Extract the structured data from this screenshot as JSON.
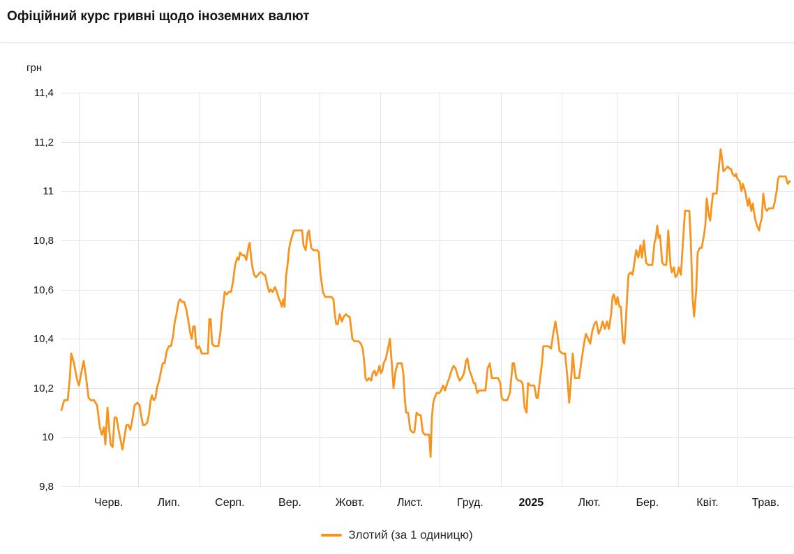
{
  "header": {
    "title": "Офіційний курс гривні щодо іноземних валют"
  },
  "legend": {
    "label": "Злотий (за 1 одиницю)",
    "swatch_color": "#F7941E"
  },
  "colors": {
    "line": "#F7941E",
    "grid": "#e4e4e4",
    "text": "#141414"
  },
  "chart_data": {
    "type": "line",
    "title": "Офіційний курс гривні щодо іноземних валют",
    "ylabel": "грн",
    "xlabel": "",
    "ylim": [
      9.8,
      11.4
    ],
    "grid": true,
    "legend_position": "bottom-center",
    "series_name": "Злотий (за 1 одиницю)",
    "line_color": "#F7941E",
    "y_ticks": [
      {
        "label": "11,4",
        "value": 11.4
      },
      {
        "label": "11,2",
        "value": 11.2
      },
      {
        "label": "11",
        "value": 11.0
      },
      {
        "label": "10,8",
        "value": 10.8
      },
      {
        "label": "10,6",
        "value": 10.6
      },
      {
        "label": "10,4",
        "value": 10.4
      },
      {
        "label": "10,2",
        "value": 10.2
      },
      {
        "label": "10",
        "value": 10.0
      },
      {
        "label": "9,8",
        "value": 9.8
      }
    ],
    "x_ticks": [
      {
        "label": "Черв.",
        "bold": false
      },
      {
        "label": "Лип.",
        "bold": false
      },
      {
        "label": "Серп.",
        "bold": false
      },
      {
        "label": "Вер.",
        "bold": false
      },
      {
        "label": "Жовт.",
        "bold": false
      },
      {
        "label": "Лист.",
        "bold": false
      },
      {
        "label": "Груд.",
        "bold": false
      },
      {
        "label": "2025",
        "bold": true
      },
      {
        "label": "Лют.",
        "bold": false
      },
      {
        "label": "Бер.",
        "bold": false
      },
      {
        "label": "Квіт.",
        "bold": false
      },
      {
        "label": "Трав.",
        "bold": false
      }
    ],
    "month_start_days": [
      9,
      39,
      70,
      101,
      131,
      162,
      192,
      223,
      254,
      282,
      313,
      343
    ],
    "x_axis_end_day": 372,
    "points": [
      [
        0,
        10.11
      ],
      [
        1.4,
        10.15
      ],
      [
        3.2,
        10.15
      ],
      [
        4.3,
        10.24
      ],
      [
        5,
        10.34
      ],
      [
        6.4,
        10.3
      ],
      [
        7.8,
        10.24
      ],
      [
        8.9,
        10.21
      ],
      [
        10.3,
        10.27
      ],
      [
        11.3,
        10.31
      ],
      [
        12.4,
        10.25
      ],
      [
        13.8,
        10.16
      ],
      [
        14.9,
        10.15
      ],
      [
        16.6,
        10.15
      ],
      [
        18.1,
        10.13
      ],
      [
        19.5,
        10.04
      ],
      [
        20.5,
        10.01
      ],
      [
        21.6,
        10.04
      ],
      [
        22.3,
        9.97
      ],
      [
        23.4,
        10.12
      ],
      [
        24.2,
        10.04
      ],
      [
        25,
        9.97
      ],
      [
        26,
        9.96
      ],
      [
        27,
        10.08
      ],
      [
        28,
        10.08
      ],
      [
        29,
        10.03
      ],
      [
        30,
        9.99
      ],
      [
        31,
        9.95
      ],
      [
        32,
        10.0
      ],
      [
        33,
        10.05
      ],
      [
        34,
        10.05
      ],
      [
        35,
        10.03
      ],
      [
        36,
        10.07
      ],
      [
        37.2,
        10.13
      ],
      [
        38.6,
        10.14
      ],
      [
        39.7,
        10.13
      ],
      [
        40.4,
        10.09
      ],
      [
        41.4,
        10.05
      ],
      [
        42.5,
        10.05
      ],
      [
        43.6,
        10.06
      ],
      [
        44.6,
        10.1
      ],
      [
        45.3,
        10.15
      ],
      [
        46,
        10.17
      ],
      [
        46.8,
        10.15
      ],
      [
        47.8,
        10.16
      ],
      [
        48.5,
        10.2
      ],
      [
        49.6,
        10.23
      ],
      [
        50.6,
        10.27
      ],
      [
        51.4,
        10.3
      ],
      [
        52.4,
        10.3
      ],
      [
        53.5,
        10.35
      ],
      [
        54.5,
        10.37
      ],
      [
        55.6,
        10.37
      ],
      [
        56.7,
        10.41
      ],
      [
        57.4,
        10.46
      ],
      [
        58.4,
        10.5
      ],
      [
        59.5,
        10.55
      ],
      [
        60.2,
        10.56
      ],
      [
        61.3,
        10.55
      ],
      [
        62.3,
        10.55
      ],
      [
        63.4,
        10.52
      ],
      [
        64.5,
        10.47
      ],
      [
        65.5,
        10.42
      ],
      [
        66.2,
        10.4
      ],
      [
        66.9,
        10.45
      ],
      [
        67.7,
        10.45
      ],
      [
        68.4,
        10.37
      ],
      [
        69.1,
        10.36
      ],
      [
        69.8,
        10.37
      ],
      [
        70.5,
        10.36
      ],
      [
        71.2,
        10.34
      ],
      [
        72.3,
        10.34
      ],
      [
        73.3,
        10.34
      ],
      [
        74.4,
        10.34
      ],
      [
        75.1,
        10.48
      ],
      [
        75.8,
        10.48
      ],
      [
        76.5,
        10.38
      ],
      [
        77.6,
        10.37
      ],
      [
        78.6,
        10.37
      ],
      [
        79.7,
        10.37
      ],
      [
        80.8,
        10.43
      ],
      [
        81.5,
        10.5
      ],
      [
        82.2,
        10.54
      ],
      [
        82.9,
        10.59
      ],
      [
        83.9,
        10.58
      ],
      [
        85,
        10.59
      ],
      [
        86.1,
        10.59
      ],
      [
        87.1,
        10.63
      ],
      [
        88.2,
        10.7
      ],
      [
        89.3,
        10.73
      ],
      [
        90,
        10.72
      ],
      [
        90.7,
        10.75
      ],
      [
        91.7,
        10.74
      ],
      [
        92.8,
        10.74
      ],
      [
        93.9,
        10.72
      ],
      [
        94.9,
        10.77
      ],
      [
        95.6,
        10.79
      ],
      [
        96.3,
        10.73
      ],
      [
        97,
        10.69
      ],
      [
        97.8,
        10.66
      ],
      [
        98.8,
        10.65
      ],
      [
        99.9,
        10.66
      ],
      [
        100.9,
        10.67
      ],
      [
        101.7,
        10.67
      ],
      [
        102.7,
        10.66
      ],
      [
        103.4,
        10.66
      ],
      [
        104.5,
        10.62
      ],
      [
        105.5,
        10.59
      ],
      [
        106.3,
        10.6
      ],
      [
        107.3,
        10.59
      ],
      [
        108.4,
        10.61
      ],
      [
        109.4,
        10.59
      ],
      [
        110.5,
        10.56
      ],
      [
        111.2,
        10.55
      ],
      [
        111.9,
        10.53
      ],
      [
        112.6,
        10.56
      ],
      [
        113.3,
        10.53
      ],
      [
        114,
        10.65
      ],
      [
        114.8,
        10.7
      ],
      [
        115.5,
        10.76
      ],
      [
        116.2,
        10.79
      ],
      [
        116.9,
        10.81
      ],
      [
        118,
        10.84
      ],
      [
        119,
        10.84
      ],
      [
        120.1,
        10.84
      ],
      [
        121.1,
        10.84
      ],
      [
        122.2,
        10.84
      ],
      [
        122.9,
        10.78
      ],
      [
        124,
        10.76
      ],
      [
        125,
        10.83
      ],
      [
        125.7,
        10.84
      ],
      [
        126.8,
        10.77
      ],
      [
        127.9,
        10.76
      ],
      [
        128.9,
        10.76
      ],
      [
        130,
        10.76
      ],
      [
        130.7,
        10.75
      ],
      [
        131.4,
        10.67
      ],
      [
        132.1,
        10.63
      ],
      [
        132.8,
        10.59
      ],
      [
        133.9,
        10.57
      ],
      [
        135,
        10.57
      ],
      [
        136,
        10.57
      ],
      [
        137.1,
        10.57
      ],
      [
        138.1,
        10.56
      ],
      [
        138.8,
        10.5
      ],
      [
        139.5,
        10.46
      ],
      [
        140.3,
        10.46
      ],
      [
        141.3,
        10.5
      ],
      [
        142.4,
        10.47
      ],
      [
        143.4,
        10.49
      ],
      [
        144.5,
        10.5
      ],
      [
        145.6,
        10.49
      ],
      [
        146.3,
        10.49
      ],
      [
        147,
        10.45
      ],
      [
        147.7,
        10.4
      ],
      [
        148.8,
        10.39
      ],
      [
        149.8,
        10.39
      ],
      [
        150.9,
        10.39
      ],
      [
        152,
        10.38
      ],
      [
        153,
        10.36
      ],
      [
        153.7,
        10.31
      ],
      [
        154.4,
        10.24
      ],
      [
        155.1,
        10.23
      ],
      [
        156.2,
        10.24
      ],
      [
        157.3,
        10.23
      ],
      [
        158,
        10.26
      ],
      [
        159,
        10.27
      ],
      [
        159.7,
        10.25
      ],
      [
        160.8,
        10.27
      ],
      [
        161.5,
        10.29
      ],
      [
        162.2,
        10.26
      ],
      [
        162.9,
        10.27
      ],
      [
        163.6,
        10.3
      ],
      [
        164.7,
        10.32
      ],
      [
        165.8,
        10.36
      ],
      [
        166.8,
        10.4
      ],
      [
        167.9,
        10.28
      ],
      [
        168.6,
        10.2
      ],
      [
        169.7,
        10.27
      ],
      [
        170.7,
        10.3
      ],
      [
        171.8,
        10.3
      ],
      [
        172.8,
        10.3
      ],
      [
        173.6,
        10.26
      ],
      [
        174.3,
        10.16
      ],
      [
        175,
        10.1
      ],
      [
        176,
        10.1
      ],
      [
        177.1,
        10.03
      ],
      [
        178.2,
        10.02
      ],
      [
        179.2,
        10.02
      ],
      [
        180.3,
        10.1
      ],
      [
        181.4,
        10.09
      ],
      [
        182.4,
        10.09
      ],
      [
        183.5,
        10.02
      ],
      [
        184.5,
        10.01
      ],
      [
        185.6,
        10.01
      ],
      [
        186.7,
        10.01
      ],
      [
        187.4,
        9.92
      ],
      [
        188.1,
        10.08
      ],
      [
        188.8,
        10.14
      ],
      [
        189.5,
        10.16
      ],
      [
        190.6,
        10.18
      ],
      [
        191.3,
        10.18
      ],
      [
        192,
        10.18
      ],
      [
        192.7,
        10.19
      ],
      [
        193.8,
        10.21
      ],
      [
        194.8,
        10.19
      ],
      [
        195.9,
        10.22
      ],
      [
        196.9,
        10.24
      ],
      [
        198,
        10.27
      ],
      [
        199.1,
        10.29
      ],
      [
        200.1,
        10.28
      ],
      [
        201.2,
        10.25
      ],
      [
        202.2,
        10.23
      ],
      [
        203.3,
        10.24
      ],
      [
        204.4,
        10.26
      ],
      [
        205.4,
        10.31
      ],
      [
        206.1,
        10.32
      ],
      [
        207.2,
        10.27
      ],
      [
        208.2,
        10.25
      ],
      [
        209.3,
        10.22
      ],
      [
        210,
        10.22
      ],
      [
        211.1,
        10.18
      ],
      [
        212.1,
        10.19
      ],
      [
        213.2,
        10.19
      ],
      [
        214.3,
        10.19
      ],
      [
        215.3,
        10.19
      ],
      [
        216.4,
        10.28
      ],
      [
        217.5,
        10.3
      ],
      [
        218.5,
        10.24
      ],
      [
        219.6,
        10.24
      ],
      [
        220.6,
        10.24
      ],
      [
        221.7,
        10.24
      ],
      [
        222.8,
        10.22
      ],
      [
        223.5,
        10.16
      ],
      [
        224.5,
        10.15
      ],
      [
        225.6,
        10.15
      ],
      [
        226.3,
        10.15
      ],
      [
        227.7,
        10.18
      ],
      [
        229.1,
        10.3
      ],
      [
        229.8,
        10.3
      ],
      [
        230.9,
        10.24
      ],
      [
        232,
        10.23
      ],
      [
        233,
        10.23
      ],
      [
        234.1,
        10.22
      ],
      [
        235.2,
        10.12
      ],
      [
        236.2,
        10.1
      ],
      [
        236.9,
        10.22
      ],
      [
        238,
        10.21
      ],
      [
        239.1,
        10.21
      ],
      [
        240.1,
        10.21
      ],
      [
        241.2,
        10.16
      ],
      [
        241.9,
        10.16
      ],
      [
        242.6,
        10.21
      ],
      [
        244,
        10.3
      ],
      [
        244.7,
        10.37
      ],
      [
        245.8,
        10.37
      ],
      [
        247.2,
        10.37
      ],
      [
        248.6,
        10.36
      ],
      [
        249.7,
        10.42
      ],
      [
        250.8,
        10.47
      ],
      [
        251.8,
        10.42
      ],
      [
        252.9,
        10.35
      ],
      [
        254.3,
        10.34
      ],
      [
        255.7,
        10.34
      ],
      [
        256.8,
        10.25
      ],
      [
        257.8,
        10.14
      ],
      [
        258.9,
        10.25
      ],
      [
        259.6,
        10.34
      ],
      [
        260.7,
        10.24
      ],
      [
        261.7,
        10.24
      ],
      [
        262.8,
        10.24
      ],
      [
        264.2,
        10.32
      ],
      [
        265.3,
        10.38
      ],
      [
        266.3,
        10.42
      ],
      [
        267.4,
        10.4
      ],
      [
        268.5,
        10.38
      ],
      [
        269.5,
        10.43
      ],
      [
        270.6,
        10.46
      ],
      [
        271.6,
        10.47
      ],
      [
        272.7,
        10.42
      ],
      [
        273.8,
        10.44
      ],
      [
        274.8,
        10.47
      ],
      [
        275.9,
        10.44
      ],
      [
        277,
        10.47
      ],
      [
        278,
        10.44
      ],
      [
        279.1,
        10.5
      ],
      [
        279.8,
        10.57
      ],
      [
        280.5,
        10.58
      ],
      [
        281.6,
        10.54
      ],
      [
        282.3,
        10.57
      ],
      [
        283.3,
        10.53
      ],
      [
        284,
        10.53
      ],
      [
        285.1,
        10.39
      ],
      [
        285.8,
        10.38
      ],
      [
        286.5,
        10.46
      ],
      [
        287.2,
        10.57
      ],
      [
        287.9,
        10.66
      ],
      [
        289,
        10.67
      ],
      [
        290,
        10.66
      ],
      [
        291.1,
        10.72
      ],
      [
        291.8,
        10.76
      ],
      [
        292.9,
        10.73
      ],
      [
        294,
        10.78
      ],
      [
        294.7,
        10.73
      ],
      [
        295.7,
        10.8
      ],
      [
        296.8,
        10.71
      ],
      [
        297.9,
        10.7
      ],
      [
        298.9,
        10.7
      ],
      [
        300,
        10.7
      ],
      [
        301.1,
        10.79
      ],
      [
        301.8,
        10.81
      ],
      [
        302.5,
        10.86
      ],
      [
        303.2,
        10.81
      ],
      [
        303.9,
        10.82
      ],
      [
        305,
        10.71
      ],
      [
        306,
        10.7
      ],
      [
        307.1,
        10.7
      ],
      [
        308.1,
        10.84
      ],
      [
        309.2,
        10.7
      ],
      [
        309.9,
        10.67
      ],
      [
        311,
        10.69
      ],
      [
        311.7,
        10.65
      ],
      [
        312.7,
        10.66
      ],
      [
        313.4,
        10.69
      ],
      [
        314.5,
        10.66
      ],
      [
        315.6,
        10.8
      ],
      [
        316.6,
        10.92
      ],
      [
        317.7,
        10.92
      ],
      [
        318.8,
        10.92
      ],
      [
        319.5,
        10.8
      ],
      [
        320.5,
        10.56
      ],
      [
        321.2,
        10.49
      ],
      [
        322.3,
        10.6
      ],
      [
        323,
        10.75
      ],
      [
        324.1,
        10.77
      ],
      [
        325.1,
        10.77
      ],
      [
        326.2,
        10.82
      ],
      [
        326.9,
        10.86
      ],
      [
        327.6,
        10.97
      ],
      [
        328.7,
        10.9
      ],
      [
        329.4,
        10.88
      ],
      [
        330.1,
        10.94
      ],
      [
        330.8,
        10.99
      ],
      [
        331.9,
        10.99
      ],
      [
        332.6,
        10.99
      ],
      [
        333.7,
        11.09
      ],
      [
        334.7,
        11.17
      ],
      [
        335.4,
        11.13
      ],
      [
        336.1,
        11.08
      ],
      [
        337.2,
        11.09
      ],
      [
        338.3,
        11.1
      ],
      [
        339.3,
        11.09
      ],
      [
        340,
        11.09
      ],
      [
        340.7,
        11.07
      ],
      [
        341.8,
        11.06
      ],
      [
        342.5,
        11.07
      ],
      [
        343.2,
        11.05
      ],
      [
        344.3,
        11.04
      ],
      [
        345.3,
        11.0
      ],
      [
        346,
        11.03
      ],
      [
        347.1,
        11.0
      ],
      [
        347.8,
        10.97
      ],
      [
        348.5,
        10.94
      ],
      [
        349.2,
        10.97
      ],
      [
        350.3,
        10.92
      ],
      [
        351,
        10.95
      ],
      [
        352.1,
        10.89
      ],
      [
        353.1,
        10.86
      ],
      [
        354.2,
        10.84
      ],
      [
        354.9,
        10.87
      ],
      [
        355.6,
        10.89
      ],
      [
        356.3,
        10.99
      ],
      [
        357.4,
        10.93
      ],
      [
        358.1,
        10.92
      ],
      [
        359.2,
        10.93
      ],
      [
        360.2,
        10.93
      ],
      [
        361.3,
        10.93
      ],
      [
        362,
        10.95
      ],
      [
        363.1,
        11.0
      ],
      [
        363.8,
        11.05
      ],
      [
        364.5,
        11.06
      ],
      [
        365.6,
        11.06
      ],
      [
        366.6,
        11.06
      ],
      [
        367.7,
        11.06
      ],
      [
        368.7,
        11.03
      ],
      [
        369.8,
        11.04
      ]
    ]
  }
}
